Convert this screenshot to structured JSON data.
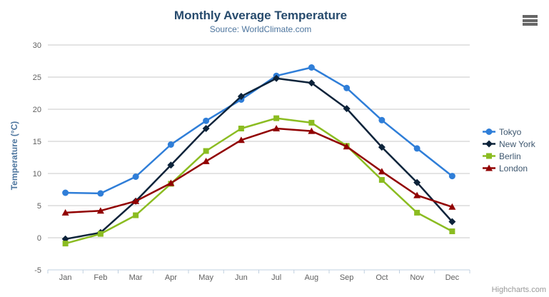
{
  "chart": {
    "title": "Monthly Average Temperature",
    "subtitle": "Source: WorldClimate.com",
    "credits": "Highcharts.com",
    "export_icon": "hamburger-menu-icon"
  },
  "chart_data": {
    "type": "line",
    "title": "Monthly Average Temperature",
    "subtitle": "Source: WorldClimate.com",
    "xlabel": "",
    "ylabel": "Temperature (°C)",
    "ylim": [
      -5,
      30
    ],
    "ytick_step": 5,
    "grid": "horizontal",
    "legend_position": "right",
    "categories": [
      "Jan",
      "Feb",
      "Mar",
      "Apr",
      "May",
      "Jun",
      "Jul",
      "Aug",
      "Sep",
      "Oct",
      "Nov",
      "Dec"
    ],
    "series": [
      {
        "name": "Tokyo",
        "color": "#2f7ed8",
        "marker": "circle",
        "values": [
          7.0,
          6.9,
          9.5,
          14.5,
          18.2,
          21.5,
          25.2,
          26.5,
          23.3,
          18.3,
          13.9,
          9.6
        ]
      },
      {
        "name": "New York",
        "color": "#0d233a",
        "marker": "diamond",
        "values": [
          -0.2,
          0.8,
          5.7,
          11.3,
          17.0,
          22.0,
          24.8,
          24.1,
          20.1,
          14.1,
          8.6,
          2.5
        ]
      },
      {
        "name": "Berlin",
        "color": "#8bbc21",
        "marker": "square",
        "values": [
          -0.9,
          0.6,
          3.5,
          8.4,
          13.5,
          17.0,
          18.6,
          17.9,
          14.3,
          9.0,
          3.9,
          1.0
        ]
      },
      {
        "name": "London",
        "color": "#910000",
        "marker": "triangle",
        "values": [
          3.9,
          4.2,
          5.7,
          8.5,
          11.9,
          15.2,
          17.0,
          16.6,
          14.2,
          10.3,
          6.6,
          4.8
        ]
      }
    ],
    "axis_colors": {
      "label": "#606060",
      "title": "#4d759e",
      "line": "#c0d0e0",
      "grid": "#c8c8c8"
    }
  }
}
